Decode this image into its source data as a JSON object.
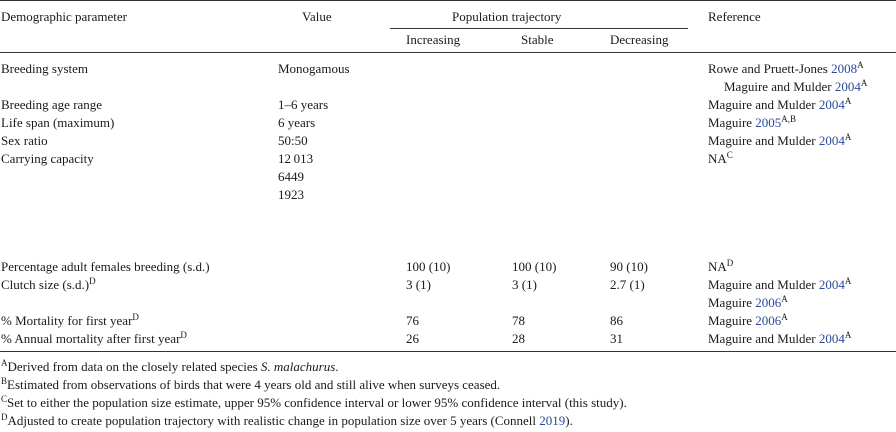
{
  "header": {
    "col_param": "Demographic parameter",
    "col_value": "Value",
    "col_trajectory": "Population trajectory",
    "col_reference": "Reference",
    "sub_increasing": "Increasing",
    "sub_stable": "Stable",
    "sub_decreasing": "Decreasing"
  },
  "rows": [
    {
      "param": "Breeding system",
      "value": "Monogamous",
      "refs": [
        {
          "pre": "Rowe and Pruett-Jones ",
          "year": "2008",
          "sup": "A"
        },
        {
          "pre": "Maguire and Mulder ",
          "year": "2004",
          "sup": "A"
        }
      ]
    },
    {
      "param": "Breeding age range",
      "value": "1–6 years",
      "refs": [
        {
          "pre": "Maguire and Mulder ",
          "year": "2004",
          "sup": "A"
        }
      ]
    },
    {
      "param": "Life span (maximum)",
      "value": "6 years",
      "refs": [
        {
          "pre": "Maguire ",
          "year": "2005",
          "sup": "A,B"
        }
      ]
    },
    {
      "param": "Sex ratio",
      "value": "50:50",
      "refs": [
        {
          "pre": "Maguire and Mulder ",
          "year": "2004",
          "sup": "A"
        }
      ]
    },
    {
      "param": "Carrying capacity",
      "values": [
        "12 013",
        "6449",
        "1923"
      ],
      "refs": [
        {
          "pre": "NA",
          "year": "",
          "sup": "C"
        }
      ]
    },
    {
      "param": "Percentage adult females breeding (s.d.)",
      "inc": "100 (10)",
      "sta": "100 (10)",
      "dec": "90 (10)",
      "refs": [
        {
          "pre": "NA",
          "year": "",
          "sup": "D"
        }
      ]
    },
    {
      "param": "Clutch size (s.d.)",
      "param_sup": "D",
      "inc": "3 (1)",
      "sta": "3 (1)",
      "dec": "2.7 (1)",
      "refs": [
        {
          "pre": "Maguire and Mulder ",
          "year": "2004",
          "sup": "A"
        },
        {
          "pre": "Maguire ",
          "year": "2006",
          "sup": "A"
        }
      ]
    },
    {
      "param": "% Mortality for first year",
      "param_sup": "D",
      "inc": "76",
      "sta": "78",
      "dec": "86",
      "refs": [
        {
          "pre": "Maguire ",
          "year": "2006",
          "sup": "A"
        }
      ]
    },
    {
      "param": "% Annual mortality after first year",
      "param_sup": "D",
      "inc": "26",
      "sta": "28",
      "dec": "31",
      "refs": [
        {
          "pre": "Maguire and Mulder ",
          "year": "2004",
          "sup": "A"
        }
      ]
    }
  ],
  "footnotes": [
    {
      "mark": "A",
      "text": "Derived from data on the closely related species ",
      "italic": "S. malachurus",
      "after": "."
    },
    {
      "mark": "B",
      "text": "Estimated from observations of birds that were 4 years old and still alive when surveys ceased."
    },
    {
      "mark": "C",
      "text": "Set to either the population size estimate, upper 95% confidence interval or lower 95% confidence interval (this study)."
    },
    {
      "mark": "D",
      "text": "Adjusted to create population trajectory with realistic change in population size over 5 years (Connell ",
      "link": "2019",
      "after": ")."
    }
  ]
}
